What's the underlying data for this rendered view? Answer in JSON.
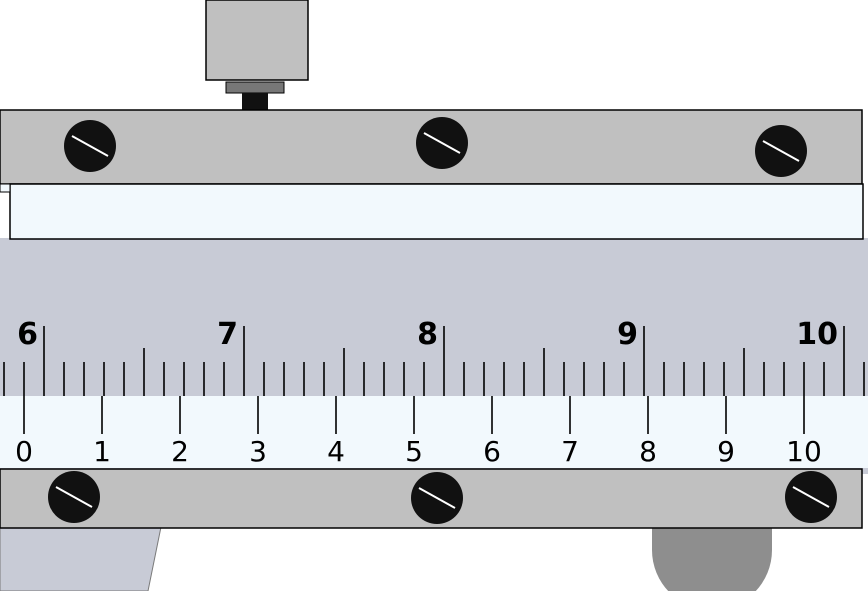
{
  "main_scale": {
    "labels": [
      "6",
      "7",
      "8",
      "9",
      "10"
    ],
    "start_value": 6,
    "subdivisions_per_unit": 10
  },
  "vernier_scale": {
    "labels": [
      "0",
      "1",
      "2",
      "3",
      "4",
      "5",
      "6",
      "7",
      "8",
      "9",
      "10"
    ]
  },
  "colors": {
    "background": "#ffffff",
    "beam": "#c8cbd6",
    "jaw_bar": "#c0c0c0",
    "scale_face": "#f2f9fd",
    "stroke": "#000000",
    "screw": "#111111",
    "knob": "#8e8e8e"
  }
}
